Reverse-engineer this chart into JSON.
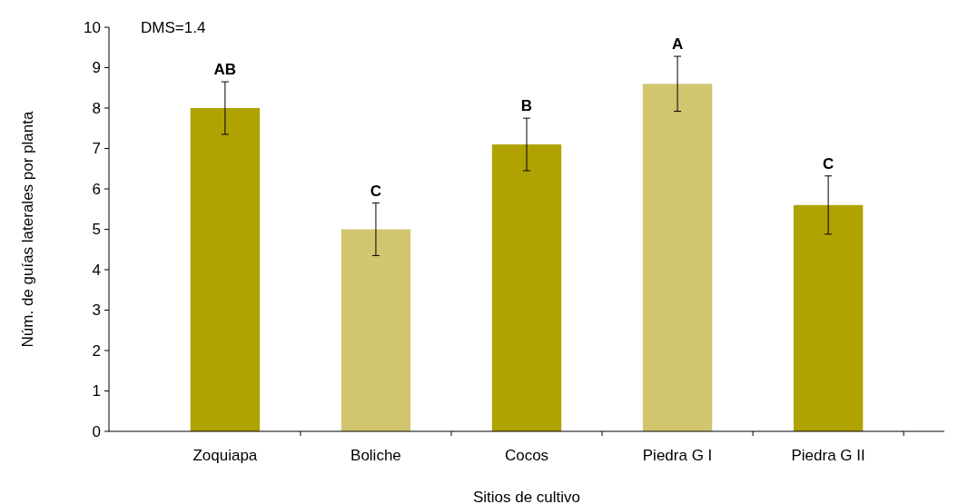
{
  "chart_data": {
    "type": "bar",
    "xlabel": "Sitios de cultivo",
    "ylabel": "Núm. de guías laterales por planta",
    "categories": [
      "Zoquiapa",
      "Boliche",
      "Cocos",
      "Piedra G I",
      "Piedra G II"
    ],
    "values": [
      8.0,
      5.0,
      7.1,
      8.6,
      5.6
    ],
    "colors": [
      "#b0a200",
      "#d1c66f",
      "#b0a200",
      "#d1c66f",
      "#b0a200"
    ],
    "errors": [
      0.65,
      0.65,
      0.65,
      0.68,
      0.72
    ],
    "ylim": [
      0,
      10
    ],
    "yticks": [
      0,
      1,
      2,
      3,
      4,
      5,
      6,
      7,
      8,
      9,
      10
    ],
    "grid": false,
    "annotations": [
      "DMS=1.4",
      {
        "text": "AB",
        "x": "Zoquiapa",
        "y": 8.65
      },
      {
        "text": "C",
        "x": "Boliche",
        "y": 5.65
      },
      {
        "text": "B",
        "x": "Cocos",
        "y": 7.75
      },
      {
        "text": "A",
        "x": "Piedra G I",
        "y": 9.28
      },
      {
        "text": "C",
        "x": "Piedra G II",
        "y": 6.32
      }
    ]
  }
}
